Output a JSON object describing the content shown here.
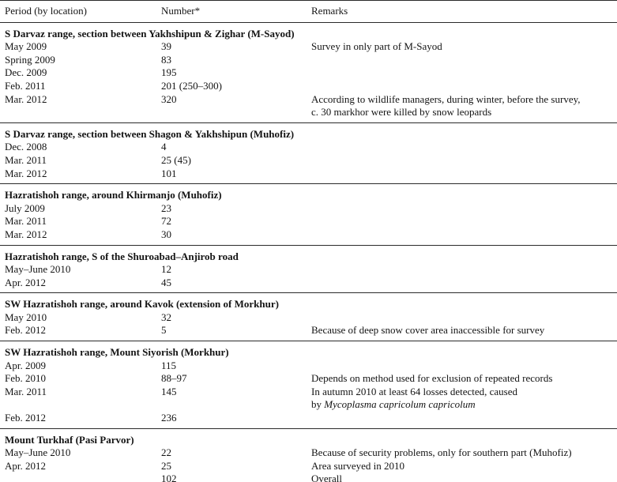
{
  "table": {
    "headers": [
      "Period (by location)",
      "Number*",
      "Remarks"
    ],
    "sections": [
      {
        "title": "S Darvaz range, section between Yakhshipun & Zighar (M-Sayod)",
        "rows": [
          {
            "period": "May 2009",
            "number": "39",
            "remarks": "Survey in only part of M-Sayod"
          },
          {
            "period": "Spring 2009",
            "number": "83",
            "remarks": ""
          },
          {
            "period": "Dec. 2009",
            "number": "195",
            "remarks": ""
          },
          {
            "period": "Feb. 2011",
            "number": "201 (250–300)",
            "remarks": ""
          },
          {
            "period": "Mar. 2012",
            "number": "320",
            "remarks_line1": "According to wildlife managers, during winter, before the survey,",
            "remarks_line2": "c. 30 markhor were killed by snow leopards"
          }
        ]
      },
      {
        "title": "S Darvaz range, section between Shagon & Yakhshipun (Muhofiz)",
        "rows": [
          {
            "period": "Dec. 2008",
            "number": "4",
            "remarks": ""
          },
          {
            "period": "Mar. 2011",
            "number": "25 (45)",
            "remarks": ""
          },
          {
            "period": "Mar. 2012",
            "number": "101",
            "remarks": ""
          }
        ]
      },
      {
        "title": "Hazratishoh range, around Khirmanjo (Muhofiz)",
        "rows": [
          {
            "period": "July 2009",
            "number": "23",
            "remarks": ""
          },
          {
            "period": "Mar. 2011",
            "number": "72",
            "remarks": ""
          },
          {
            "period": "Mar. 2012",
            "number": "30",
            "remarks": ""
          }
        ]
      },
      {
        "title": "Hazratishoh range, S of the Shuroabad–Anjirob road",
        "rows": [
          {
            "period": "May–June 2010",
            "number": "12",
            "remarks": ""
          },
          {
            "period": "Apr. 2012",
            "number": "45",
            "remarks": ""
          }
        ]
      },
      {
        "title": "SW Hazratishoh range, around Kavok (extension of Morkhur)",
        "rows": [
          {
            "period": "May 2010",
            "number": "32",
            "remarks": ""
          },
          {
            "period": "Feb. 2012",
            "number": "5",
            "remarks": "Because of deep snow cover area inaccessible for survey"
          }
        ]
      },
      {
        "title": "SW Hazratishoh range, Mount Siyorish (Morkhur)",
        "rows": [
          {
            "period": "Apr. 2009",
            "number": "115",
            "remarks": ""
          },
          {
            "period": "Feb. 2010",
            "number": "88–97",
            "remarks": "Depends on method used for exclusion of repeated records"
          },
          {
            "period": "Mar. 2011",
            "number": "145",
            "remarks_line1": "In autumn 2010 at least 64 losses detected, caused",
            "remarks_line2_prefix": "by ",
            "remarks_italic": "Mycoplasma capricolum capricolum"
          },
          {
            "period": "Feb. 2012",
            "number": "236",
            "remarks": ""
          }
        ]
      },
      {
        "title": "Mount Turkhaf (Pasi Parvor)",
        "rows": [
          {
            "period": "May–June 2010",
            "number": "22",
            "remarks": "Because of security problems, only for southern part (Muhofiz)"
          },
          {
            "period": "Apr. 2012",
            "number": "25",
            "remarks": "Area surveyed in 2010"
          },
          {
            "period": "",
            "number": "102",
            "remarks": "Overall"
          }
        ]
      }
    ]
  }
}
